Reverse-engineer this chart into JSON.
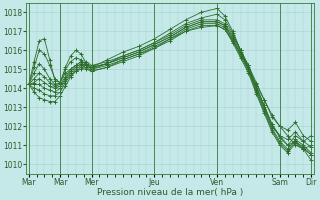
{
  "title": "",
  "xlabel": "Pression niveau de la mer( hPa )",
  "ylabel": "",
  "bg_color": "#c5e8e8",
  "grid_color": "#a8d0d0",
  "line_color": "#2d6e2d",
  "marker_color": "#2d6e2d",
  "ylim": [
    1009.5,
    1018.5
  ],
  "yticks": [
    1010,
    1011,
    1012,
    1013,
    1014,
    1015,
    1016,
    1017,
    1018
  ],
  "xtick_labels": [
    "Mar",
    "Mar",
    "Mer",
    "Jeu",
    "Ven",
    "Sam",
    "Dir"
  ],
  "xtick_positions": [
    0,
    24,
    48,
    96,
    144,
    192,
    216
  ],
  "xlim": [
    -2,
    218
  ],
  "series": [
    {
      "x": [
        0,
        4,
        8,
        12,
        16,
        20,
        24,
        28,
        32,
        36,
        40,
        44,
        48,
        60,
        72,
        84,
        96,
        108,
        120,
        132,
        144,
        150,
        156,
        162,
        168,
        174,
        180,
        186,
        192,
        198,
        204,
        210,
        216
      ],
      "y": [
        1014.2,
        1014.8,
        1015.3,
        1015.0,
        1014.5,
        1014.2,
        1014.3,
        1014.8,
        1015.0,
        1015.2,
        1015.4,
        1015.0,
        1014.9,
        1015.1,
        1015.5,
        1015.8,
        1016.1,
        1016.6,
        1017.0,
        1017.2,
        1017.3,
        1017.1,
        1016.5,
        1015.8,
        1015.0,
        1014.2,
        1013.4,
        1012.6,
        1012.0,
        1011.5,
        1011.0,
        1010.8,
        1011.0
      ]
    },
    {
      "x": [
        0,
        4,
        8,
        12,
        16,
        20,
        24,
        28,
        32,
        36,
        40,
        44,
        48,
        60,
        72,
        84,
        96,
        108,
        120,
        132,
        144,
        150,
        156,
        162,
        168,
        174,
        180,
        186,
        192,
        198,
        204,
        210,
        216
      ],
      "y": [
        1014.2,
        1015.1,
        1016.0,
        1015.8,
        1015.2,
        1014.5,
        1014.3,
        1015.0,
        1015.4,
        1015.6,
        1015.5,
        1015.2,
        1015.0,
        1015.3,
        1015.7,
        1016.0,
        1016.4,
        1016.9,
        1017.4,
        1017.7,
        1017.9,
        1017.6,
        1016.9,
        1016.0,
        1015.2,
        1014.3,
        1013.4,
        1012.5,
        1012.0,
        1011.8,
        1012.2,
        1011.5,
        1011.2
      ]
    },
    {
      "x": [
        0,
        4,
        8,
        12,
        16,
        20,
        24,
        28,
        32,
        36,
        40,
        44,
        48,
        60,
        72,
        84,
        96,
        108,
        120,
        132,
        144,
        150,
        156,
        162,
        168,
        174,
        180,
        186,
        192,
        198,
        204,
        210,
        216
      ],
      "y": [
        1014.2,
        1015.4,
        1016.5,
        1016.6,
        1015.5,
        1014.4,
        1014.3,
        1015.1,
        1015.7,
        1016.0,
        1015.8,
        1015.3,
        1015.1,
        1015.5,
        1015.9,
        1016.2,
        1016.6,
        1017.1,
        1017.6,
        1018.0,
        1018.2,
        1017.8,
        1017.0,
        1016.0,
        1015.0,
        1014.0,
        1013.0,
        1012.0,
        1011.5,
        1011.3,
        1011.7,
        1011.2,
        1011.5
      ]
    },
    {
      "x": [
        0,
        4,
        8,
        12,
        16,
        20,
        24,
        28,
        32,
        36,
        40,
        44,
        48,
        60,
        72,
        84,
        96,
        108,
        120,
        132,
        144,
        150,
        156,
        162,
        168,
        174,
        180,
        186,
        192,
        198,
        204,
        210,
        216
      ],
      "y": [
        1014.2,
        1014.5,
        1014.8,
        1014.6,
        1014.3,
        1014.1,
        1014.2,
        1014.6,
        1015.0,
        1015.2,
        1015.4,
        1015.3,
        1015.1,
        1015.3,
        1015.6,
        1015.9,
        1016.3,
        1016.7,
        1017.2,
        1017.5,
        1017.5,
        1017.3,
        1016.7,
        1015.9,
        1015.1,
        1014.1,
        1013.1,
        1012.1,
        1011.5,
        1011.0,
        1011.2,
        1010.8,
        1010.5
      ]
    },
    {
      "x": [
        0,
        4,
        8,
        12,
        16,
        20,
        24,
        28,
        32,
        36,
        40,
        44,
        48,
        60,
        72,
        84,
        96,
        108,
        120,
        132,
        144,
        150,
        156,
        162,
        168,
        174,
        180,
        186,
        192,
        198,
        204,
        210,
        216
      ],
      "y": [
        1014.2,
        1014.3,
        1014.5,
        1014.3,
        1014.1,
        1014.0,
        1014.1,
        1014.5,
        1014.9,
        1015.1,
        1015.3,
        1015.4,
        1015.2,
        1015.4,
        1015.7,
        1016.0,
        1016.4,
        1016.8,
        1017.3,
        1017.6,
        1017.6,
        1017.4,
        1016.8,
        1016.0,
        1015.2,
        1014.1,
        1013.1,
        1012.1,
        1011.4,
        1011.0,
        1011.5,
        1011.2,
        1010.9
      ]
    },
    {
      "x": [
        0,
        4,
        8,
        12,
        16,
        20,
        24,
        28,
        32,
        36,
        40,
        44,
        48,
        60,
        72,
        84,
        96,
        108,
        120,
        132,
        144,
        150,
        156,
        162,
        168,
        174,
        180,
        186,
        192,
        198,
        204,
        210,
        216
      ],
      "y": [
        1014.2,
        1014.2,
        1014.2,
        1014.0,
        1013.9,
        1013.8,
        1014.0,
        1014.4,
        1014.8,
        1015.0,
        1015.2,
        1015.3,
        1015.1,
        1015.3,
        1015.6,
        1015.9,
        1016.3,
        1016.7,
        1017.2,
        1017.5,
        1017.5,
        1017.3,
        1016.6,
        1015.8,
        1015.0,
        1013.9,
        1012.9,
        1011.9,
        1011.2,
        1010.8,
        1011.3,
        1011.0,
        1010.6
      ]
    },
    {
      "x": [
        0,
        4,
        8,
        12,
        16,
        20,
        24,
        28,
        32,
        36,
        40,
        44,
        48,
        60,
        72,
        84,
        96,
        108,
        120,
        132,
        144,
        150,
        156,
        162,
        168,
        174,
        180,
        186,
        192,
        198,
        204,
        210,
        216
      ],
      "y": [
        1014.2,
        1014.0,
        1013.9,
        1013.7,
        1013.6,
        1013.6,
        1013.8,
        1014.3,
        1014.7,
        1014.9,
        1015.1,
        1015.2,
        1015.0,
        1015.2,
        1015.5,
        1015.8,
        1016.2,
        1016.6,
        1017.1,
        1017.4,
        1017.4,
        1017.2,
        1016.5,
        1015.7,
        1014.9,
        1013.8,
        1012.8,
        1011.8,
        1011.1,
        1010.7,
        1011.2,
        1010.9,
        1010.5
      ]
    },
    {
      "x": [
        0,
        4,
        8,
        12,
        16,
        20,
        24,
        28,
        32,
        36,
        40,
        44,
        48,
        60,
        72,
        84,
        96,
        108,
        120,
        132,
        144,
        150,
        156,
        162,
        168,
        174,
        180,
        186,
        192,
        198,
        204,
        210,
        216
      ],
      "y": [
        1014.2,
        1013.8,
        1013.5,
        1013.4,
        1013.3,
        1013.3,
        1013.6,
        1014.1,
        1014.6,
        1014.9,
        1015.0,
        1015.1,
        1014.9,
        1015.1,
        1015.4,
        1015.7,
        1016.1,
        1016.5,
        1017.0,
        1017.3,
        1017.3,
        1017.1,
        1016.4,
        1015.6,
        1014.8,
        1013.7,
        1012.7,
        1011.7,
        1011.0,
        1010.6,
        1011.1,
        1010.8,
        1010.2
      ]
    }
  ]
}
